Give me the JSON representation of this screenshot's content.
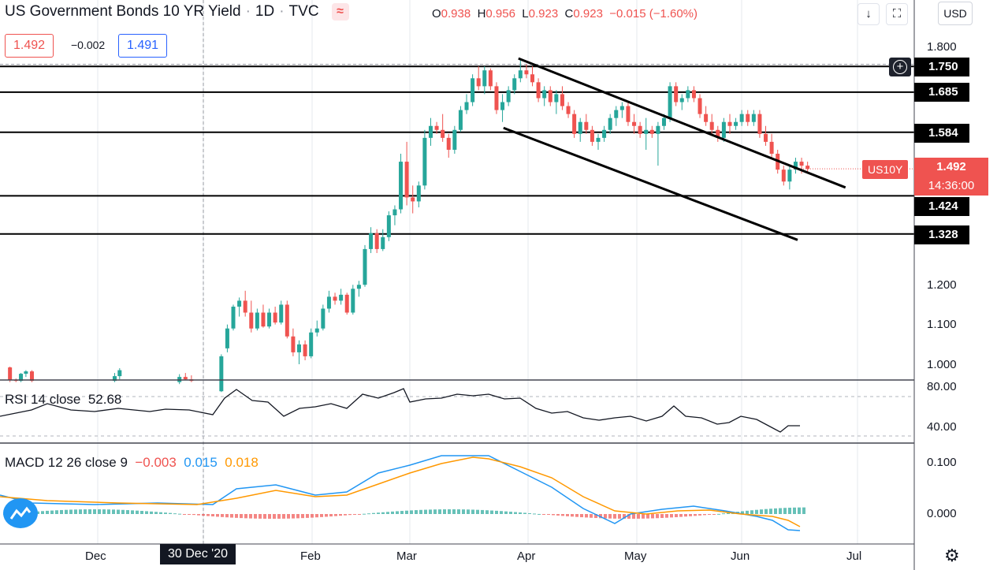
{
  "header": {
    "symbol_title": "US Government Bonds 10 YR Yield",
    "interval": "1D",
    "source": "TVC",
    "ohlc": {
      "o_label": "O",
      "o": "0.938",
      "h_label": "H",
      "h": "0.956",
      "l_label": "L",
      "l": "0.923",
      "c_label": "C",
      "c": "0.923",
      "change": "−0.015 (−1.60%)"
    },
    "sell_price": "1.492",
    "spread": "−0.002",
    "buy_price": "1.491",
    "currency": "USD"
  },
  "chart_data": {
    "type": "candlestick",
    "y_range_main": [
      0.96,
      1.82
    ],
    "y_ticks_main": [
      "1.800",
      "1.200",
      "1.100",
      "1.000"
    ],
    "x_labels": [
      "Dec",
      "30 Dec '20",
      "Feb",
      "Mar",
      "Apr",
      "May",
      "Jun",
      "Jul"
    ],
    "levels": [
      "1.750",
      "1.685",
      "1.584",
      "1.424",
      "1.328"
    ],
    "last_price": {
      "symbol": "US10Y",
      "value": "1.492",
      "countdown": "14:36:00"
    },
    "channel_upper": [
      [
        0.6595,
        1.77
      ],
      [
        0.851,
        1.45
      ]
    ],
    "channel_lower": [
      [
        0.505,
        1.6
      ],
      [
        0.8,
        1.315
      ]
    ],
    "candles": [
      [
        0.01,
        0.992,
        0.994,
        0.955,
        0.96
      ],
      [
        0.016,
        0.96,
        0.964,
        0.955,
        0.958
      ],
      [
        0.021,
        0.958,
        0.978,
        0.955,
        0.976
      ],
      [
        0.026,
        0.976,
        0.985,
        0.968,
        0.982
      ],
      [
        0.032,
        0.982,
        0.985,
        0.955,
        0.958
      ],
      [
        0.115,
        0.958,
        0.978,
        0.955,
        0.97
      ],
      [
        0.12,
        0.97,
        0.99,
        0.962,
        0.985
      ],
      [
        0.18,
        0.955,
        0.975,
        0.95,
        0.968
      ],
      [
        0.186,
        0.968,
        0.978,
        0.96,
        0.962
      ],
      [
        0.192,
        0.962,
        0.972,
        0.955,
        0.958
      ],
      [
        0.222,
        0.932,
        1.025,
        0.93,
        1.02
      ],
      [
        0.228,
        1.04,
        1.1,
        1.03,
        1.09
      ],
      [
        0.234,
        1.09,
        1.15,
        1.085,
        1.145
      ],
      [
        0.24,
        1.145,
        1.168,
        1.12,
        1.16
      ],
      [
        0.246,
        1.16,
        1.185,
        1.12,
        1.13
      ],
      [
        0.252,
        1.13,
        1.16,
        1.08,
        1.09
      ],
      [
        0.258,
        1.09,
        1.14,
        1.085,
        1.13
      ],
      [
        0.264,
        1.13,
        1.15,
        1.092,
        1.095
      ],
      [
        0.27,
        1.095,
        1.14,
        1.09,
        1.13
      ],
      [
        0.276,
        1.13,
        1.145,
        1.1,
        1.105
      ],
      [
        0.282,
        1.105,
        1.16,
        1.1,
        1.15
      ],
      [
        0.288,
        1.15,
        1.16,
        1.065,
        1.07
      ],
      [
        0.294,
        1.07,
        1.09,
        1.02,
        1.03
      ],
      [
        0.3,
        1.03,
        1.06,
        1.0,
        1.05
      ],
      [
        0.306,
        1.05,
        1.06,
        1.01,
        1.02
      ],
      [
        0.312,
        1.02,
        1.09,
        1.015,
        1.08
      ],
      [
        0.318,
        1.08,
        1.11,
        1.07,
        1.09
      ],
      [
        0.324,
        1.09,
        1.15,
        1.085,
        1.14
      ],
      [
        0.33,
        1.14,
        1.185,
        1.13,
        1.17
      ],
      [
        0.336,
        1.17,
        1.18,
        1.15,
        1.16
      ],
      [
        0.342,
        1.16,
        1.19,
        1.15,
        1.175
      ],
      [
        0.348,
        1.175,
        1.18,
        1.125,
        1.13
      ],
      [
        0.354,
        1.13,
        1.2,
        1.125,
        1.19
      ],
      [
        0.36,
        1.19,
        1.21,
        1.17,
        1.2
      ],
      [
        0.366,
        1.2,
        1.3,
        1.195,
        1.29
      ],
      [
        0.372,
        1.29,
        1.345,
        1.28,
        1.33
      ],
      [
        0.378,
        1.33,
        1.34,
        1.28,
        1.29
      ],
      [
        0.384,
        1.29,
        1.34,
        1.285,
        1.32
      ],
      [
        0.39,
        1.32,
        1.385,
        1.31,
        1.375
      ],
      [
        0.396,
        1.375,
        1.4,
        1.35,
        1.39
      ],
      [
        0.402,
        1.39,
        1.53,
        1.38,
        1.51
      ],
      [
        0.408,
        1.51,
        1.56,
        1.4,
        1.42
      ],
      [
        0.414,
        1.42,
        1.45,
        1.38,
        1.41
      ],
      [
        0.42,
        1.41,
        1.46,
        1.395,
        1.45
      ],
      [
        0.426,
        1.45,
        1.59,
        1.44,
        1.57
      ],
      [
        0.432,
        1.57,
        1.62,
        1.55,
        1.6
      ],
      [
        0.438,
        1.6,
        1.61,
        1.58,
        1.59
      ],
      [
        0.444,
        1.59,
        1.63,
        1.56,
        1.57
      ],
      [
        0.45,
        1.57,
        1.58,
        1.52,
        1.54
      ],
      [
        0.456,
        1.54,
        1.6,
        1.53,
        1.59
      ],
      [
        0.462,
        1.59,
        1.65,
        1.585,
        1.64
      ],
      [
        0.468,
        1.64,
        1.68,
        1.63,
        1.66
      ],
      [
        0.474,
        1.66,
        1.73,
        1.65,
        1.72
      ],
      [
        0.48,
        1.72,
        1.75,
        1.69,
        1.7
      ],
      [
        0.486,
        1.7,
        1.75,
        1.68,
        1.74
      ],
      [
        0.492,
        1.74,
        1.745,
        1.69,
        1.7
      ],
      [
        0.498,
        1.7,
        1.71,
        1.63,
        1.64
      ],
      [
        0.504,
        1.64,
        1.68,
        1.61,
        1.66
      ],
      [
        0.51,
        1.66,
        1.7,
        1.65,
        1.69
      ],
      [
        0.516,
        1.69,
        1.73,
        1.68,
        1.72
      ],
      [
        0.522,
        1.72,
        1.77,
        1.71,
        1.74
      ],
      [
        0.528,
        1.74,
        1.755,
        1.72,
        1.73
      ],
      [
        0.534,
        1.73,
        1.75,
        1.7,
        1.71
      ],
      [
        0.54,
        1.71,
        1.72,
        1.66,
        1.67
      ],
      [
        0.546,
        1.67,
        1.7,
        1.65,
        1.69
      ],
      [
        0.552,
        1.69,
        1.7,
        1.65,
        1.66
      ],
      [
        0.558,
        1.66,
        1.69,
        1.63,
        1.68
      ],
      [
        0.564,
        1.68,
        1.7,
        1.64,
        1.65
      ],
      [
        0.57,
        1.65,
        1.66,
        1.62,
        1.63
      ],
      [
        0.576,
        1.63,
        1.64,
        1.57,
        1.58
      ],
      [
        0.582,
        1.58,
        1.62,
        1.56,
        1.61
      ],
      [
        0.588,
        1.61,
        1.63,
        1.58,
        1.59
      ],
      [
        0.594,
        1.59,
        1.6,
        1.55,
        1.56
      ],
      [
        0.6,
        1.56,
        1.58,
        1.54,
        1.57
      ],
      [
        0.606,
        1.57,
        1.6,
        1.56,
        1.59
      ],
      [
        0.612,
        1.59,
        1.63,
        1.58,
        1.62
      ],
      [
        0.618,
        1.62,
        1.65,
        1.6,
        1.64
      ],
      [
        0.624,
        1.64,
        1.66,
        1.62,
        1.65
      ],
      [
        0.63,
        1.65,
        1.66,
        1.6,
        1.61
      ],
      [
        0.636,
        1.61,
        1.63,
        1.58,
        1.6
      ],
      [
        0.642,
        1.6,
        1.61,
        1.57,
        1.58
      ],
      [
        0.648,
        1.58,
        1.62,
        1.54,
        1.59
      ],
      [
        0.654,
        1.59,
        1.6,
        1.57,
        1.58
      ],
      [
        0.66,
        1.58,
        1.61,
        1.5,
        1.6
      ],
      [
        0.666,
        1.6,
        1.63,
        1.59,
        1.62
      ],
      [
        0.672,
        1.62,
        1.71,
        1.61,
        1.7
      ],
      [
        0.678,
        1.7,
        1.71,
        1.65,
        1.66
      ],
      [
        0.684,
        1.66,
        1.68,
        1.64,
        1.67
      ],
      [
        0.69,
        1.67,
        1.7,
        1.66,
        1.69
      ],
      [
        0.696,
        1.69,
        1.7,
        1.66,
        1.67
      ],
      [
        0.702,
        1.67,
        1.68,
        1.62,
        1.63
      ],
      [
        0.708,
        1.63,
        1.65,
        1.6,
        1.61
      ],
      [
        0.714,
        1.61,
        1.63,
        1.58,
        1.59
      ],
      [
        0.72,
        1.59,
        1.6,
        1.56,
        1.57
      ],
      [
        0.726,
        1.57,
        1.62,
        1.56,
        1.61
      ],
      [
        0.732,
        1.61,
        1.63,
        1.58,
        1.6
      ],
      [
        0.738,
        1.6,
        1.62,
        1.59,
        1.61
      ],
      [
        0.744,
        1.61,
        1.64,
        1.6,
        1.63
      ],
      [
        0.75,
        1.63,
        1.64,
        1.6,
        1.61
      ],
      [
        0.756,
        1.61,
        1.64,
        1.6,
        1.63
      ],
      [
        0.762,
        1.63,
        1.64,
        1.57,
        1.58
      ],
      [
        0.768,
        1.58,
        1.6,
        1.55,
        1.56
      ],
      [
        0.774,
        1.56,
        1.58,
        1.52,
        1.53
      ],
      [
        0.78,
        1.53,
        1.54,
        1.48,
        1.49
      ],
      [
        0.786,
        1.49,
        1.5,
        1.45,
        1.46
      ],
      [
        0.792,
        1.46,
        1.5,
        1.44,
        1.49
      ],
      [
        0.798,
        1.49,
        1.52,
        1.48,
        1.51
      ],
      [
        0.804,
        1.51,
        1.52,
        1.48,
        1.5
      ],
      [
        0.81,
        1.5,
        1.51,
        1.485,
        1.492
      ]
    ]
  },
  "rsi": {
    "label": "RSI 14 close",
    "value": "52.68",
    "ticks": [
      "80.00",
      "40.00"
    ]
  },
  "macd": {
    "label": "MACD 12 26 close 9",
    "hist": "−0.003",
    "macd": "0.015",
    "signal": "0.018",
    "ticks": [
      "0.100",
      "0.000"
    ]
  },
  "colors": {
    "up": "#26a69a",
    "down": "#ef5350",
    "macd": "#2196f3",
    "signal": "#ff9800",
    "levels": "#000000"
  }
}
